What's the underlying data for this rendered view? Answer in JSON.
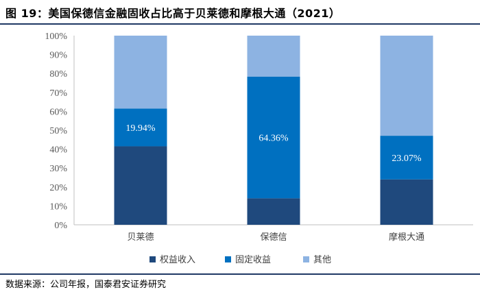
{
  "header": {
    "title": "图 19：美国保德信金融固收占比高于贝莱德和摩根大通（2021）"
  },
  "footer": {
    "source": "数据来源：公司年报，国泰君安证券研究"
  },
  "chart_data": {
    "type": "bar",
    "stacked": true,
    "categories": [
      "贝莱德",
      "保德信",
      "摩根大通"
    ],
    "series": [
      {
        "name": "权益收入",
        "values": [
          41.5,
          14.0,
          24.0
        ],
        "color": "#1f497d"
      },
      {
        "name": "固定收益",
        "values": [
          19.94,
          64.36,
          23.07
        ],
        "color": "#0070c0"
      },
      {
        "name": "其他",
        "values": [
          38.56,
          21.64,
          52.93
        ],
        "color": "#8db3e2"
      }
    ],
    "data_labels": [
      "19.94%",
      "64.36%",
      "23.07%"
    ],
    "yticks": [
      "0%",
      "10%",
      "20%",
      "30%",
      "40%",
      "50%",
      "60%",
      "70%",
      "80%",
      "90%",
      "100%"
    ],
    "ylim": [
      0,
      100
    ],
    "legend_position": "bottom"
  }
}
